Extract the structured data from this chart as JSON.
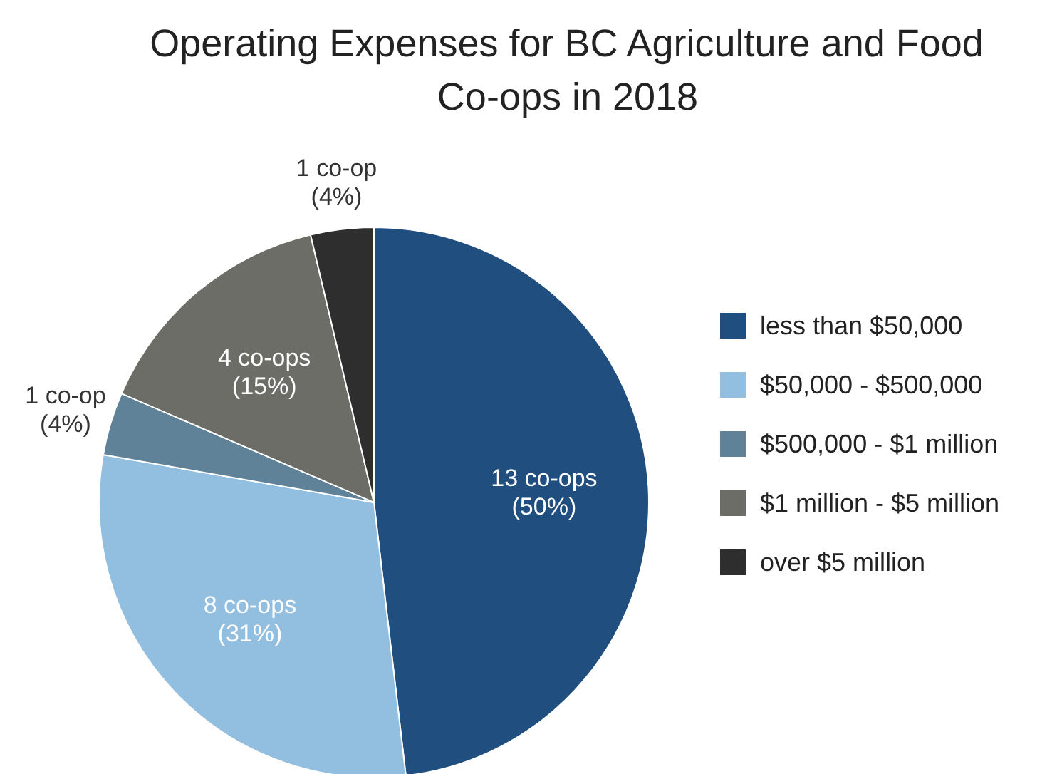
{
  "chart_data": {
    "type": "pie",
    "title": "Operating Expenses for BC Agriculture and Food Co-ops in 2018",
    "categories": [
      "less than $50,000",
      "$50,000 - $500,000",
      "$500,000 - $1 million",
      "$1 million - $5 million",
      "over $5 million"
    ],
    "values": [
      13,
      8,
      1,
      4,
      1
    ],
    "value_labels": [
      "13 co-ops\n(50%)",
      "8 co-ops\n(31%)",
      "1 co-op\n(4%)",
      "4 co-ops\n(15%)",
      "1 co-op\n(4%)"
    ],
    "colors": [
      "#1f4e7f",
      "#92bfe0",
      "#5f8298",
      "#6d6d68",
      "#2e2e2e"
    ],
    "legend": "right"
  }
}
